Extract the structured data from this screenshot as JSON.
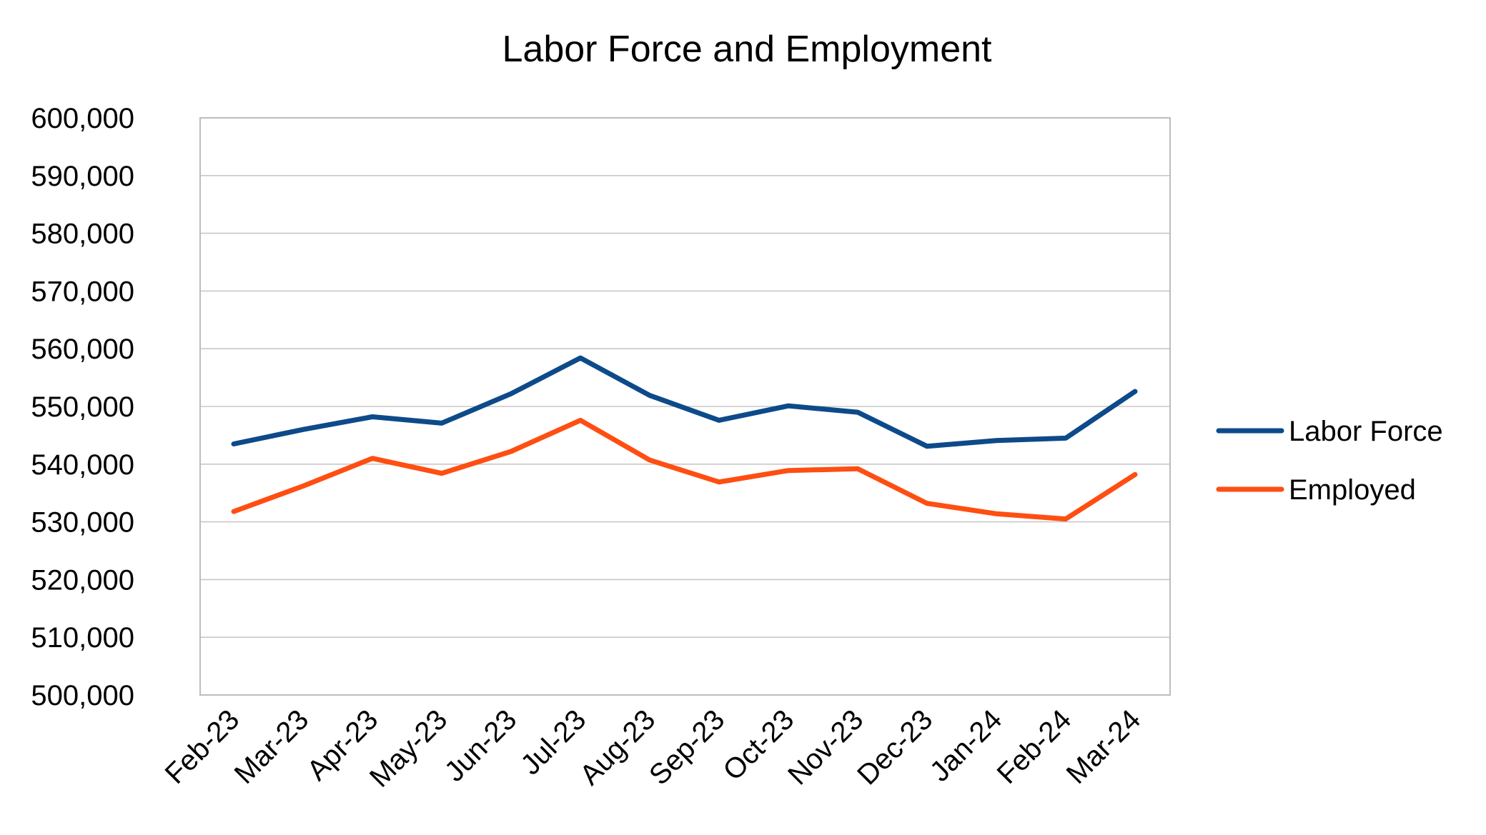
{
  "chart_data": {
    "type": "line",
    "title": "Labor Force and Employment",
    "categories": [
      "Feb-23",
      "Mar-23",
      "Apr-23",
      "May-23",
      "Jun-23",
      "Jul-23",
      "Aug-23",
      "Sep-23",
      "Oct-23",
      "Nov-23",
      "Dec-23",
      "Jan-24",
      "Feb-24",
      "Mar-24"
    ],
    "series": [
      {
        "name": "Labor Force",
        "color": "#0D4A8A",
        "values": [
          543500,
          546000,
          548200,
          547100,
          552200,
          558400,
          551900,
          547600,
          550100,
          549000,
          543100,
          544100,
          544500,
          552600
        ]
      },
      {
        "name": "Employed",
        "color": "#FF4E12",
        "values": [
          531800,
          536200,
          541000,
          538400,
          542200,
          547600,
          540700,
          536900,
          538900,
          539200,
          533200,
          531400,
          530500,
          538200
        ]
      }
    ],
    "yticks": [
      "500,000",
      "510,000",
      "520,000",
      "530,000",
      "540,000",
      "550,000",
      "560,000",
      "570,000",
      "580,000",
      "590,000",
      "600,000"
    ],
    "ylim": [
      500000,
      600000
    ],
    "xlabel": "",
    "ylabel": "",
    "grid": true,
    "legend_position": "right"
  }
}
